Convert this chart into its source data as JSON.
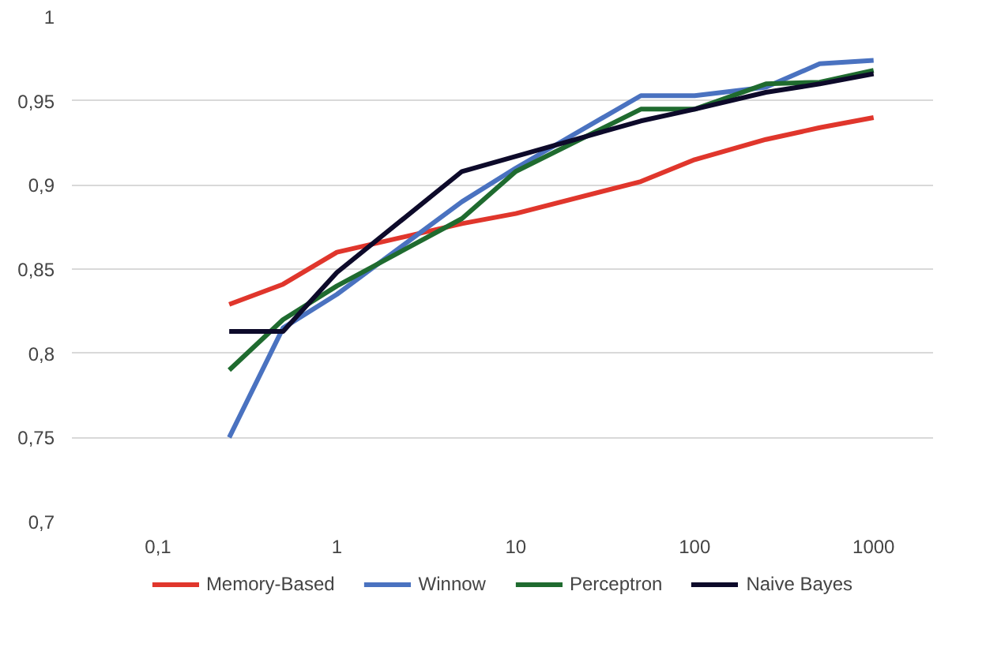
{
  "chart_data": {
    "type": "line",
    "log": "x",
    "grid": "y",
    "legend": "bottom",
    "line_style": "solid",
    "xlim": [
      0.033,
      2150
    ],
    "ylim": [
      0.7,
      1
    ],
    "xticks": [
      {
        "value": 0.1,
        "label": "0,1"
      },
      1,
      10,
      100,
      1000
    ],
    "yticks": [
      {
        "value": 0.7,
        "label": "0,7"
      },
      {
        "value": 0.75,
        "label": "0,75"
      },
      {
        "value": 0.8,
        "label": "0,8"
      },
      {
        "value": 0.85,
        "label": "0,85"
      },
      {
        "value": 0.9,
        "label": "0,9"
      },
      {
        "value": 0.95,
        "label": "0,95"
      },
      1
    ],
    "x": [
      0.25,
      0.5,
      1,
      5,
      10,
      50,
      100,
      250,
      500,
      1000
    ],
    "series": [
      {
        "name": "Memory-Based",
        "color": "#e0362c",
        "values": [
          0.829,
          0.841,
          0.86,
          0.877,
          0.883,
          0.902,
          0.915,
          0.927,
          0.934,
          0.94
        ]
      },
      {
        "name": "Winnow",
        "color": "#4a72c0",
        "values": [
          0.75,
          0.815,
          0.835,
          0.89,
          0.91,
          0.953,
          0.953,
          0.958,
          0.972,
          0.974
        ]
      },
      {
        "name": "Perceptron",
        "color": "#1f6b2f",
        "values": [
          0.79,
          0.82,
          0.84,
          0.88,
          0.908,
          0.945,
          0.945,
          0.96,
          0.961,
          0.968
        ]
      },
      {
        "name": "Naive Bayes",
        "color": "#0d0a2a",
        "values": [
          0.813,
          0.813,
          0.848,
          0.908,
          0.917,
          0.938,
          0.945,
          0.955,
          0.96,
          0.966
        ]
      }
    ]
  }
}
